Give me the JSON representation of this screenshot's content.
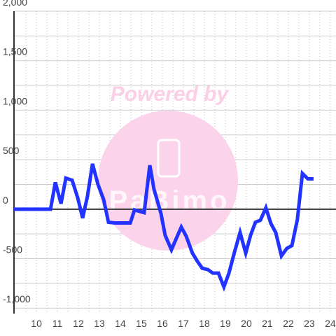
{
  "chart_data": {
    "type": "line",
    "watermark": "Powered by",
    "watermark_logo": "PaBimo",
    "x": [
      8.93,
      10.67,
      10.9,
      11.17,
      11.4,
      11.7,
      11.97,
      12.2,
      12.43,
      12.67,
      12.93,
      13.2,
      13.43,
      13.73,
      14.47,
      14.67,
      15.13,
      15.4,
      15.6,
      15.93,
      16.13,
      16.43,
      16.67,
      16.9,
      17.13,
      17.43,
      17.67,
      17.9,
      18.17,
      18.4,
      18.67,
      18.93,
      19.17,
      19.43,
      19.7,
      19.97,
      20.2,
      20.43,
      20.67,
      20.93,
      21.17,
      21.4,
      21.67,
      21.93,
      22.17,
      22.43,
      22.67,
      22.93,
      23.2
    ],
    "values": [
      0,
      0,
      271,
      56,
      313,
      292,
      111,
      -90,
      132,
      458,
      250,
      97,
      -132,
      -139,
      -139,
      -7,
      -35,
      444,
      201,
      -42,
      -264,
      -410,
      -292,
      -181,
      -271,
      -444,
      -528,
      -597,
      -611,
      -646,
      -646,
      -785,
      -646,
      -437,
      -236,
      -444,
      -264,
      -132,
      -111,
      14,
      -146,
      -236,
      -472,
      -396,
      -368,
      -104,
      361,
      306,
      306
    ],
    "color": "#2233ff",
    "xlim": [
      8.93,
      24.27
    ],
    "ylim": [
      -1055,
      2000
    ],
    "xticks": [
      10,
      11,
      12,
      13,
      14,
      15,
      16,
      17,
      18,
      19,
      20,
      21,
      22,
      23,
      24
    ],
    "minor_xticks": [
      9.5,
      10.5,
      11.5,
      12.5,
      13.5,
      14.5,
      15.5,
      16.5,
      17.5,
      18.5,
      19.5,
      20.5,
      21.5,
      22.5,
      23.5
    ],
    "yticks": [
      {
        "value": 2000,
        "label": "2,000"
      },
      {
        "value": 1500,
        "label": "1,500"
      },
      {
        "value": 1000,
        "label": "1,000"
      },
      500,
      0,
      -500,
      {
        "value": -1000,
        "label": "-1,000"
      }
    ],
    "minor_yticks": [
      1750,
      1250,
      750,
      250,
      -250,
      -750
    ],
    "grid": true
  }
}
